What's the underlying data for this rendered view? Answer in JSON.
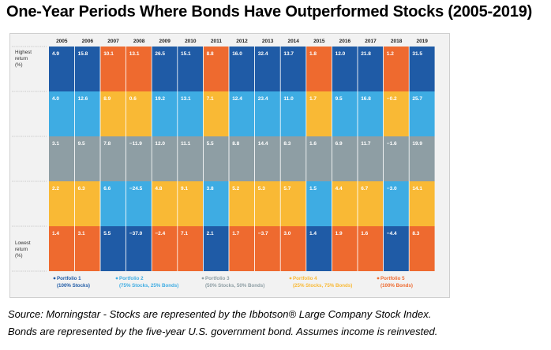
{
  "title": "One-Year Periods Where Bonds Have Outperformed Stocks (2005-2019)",
  "caption_line1": "Source: Morningstar - Stocks are represented by the Ibbotson® Large Company Stock Index.",
  "caption_line2": "Bonds are represented by the five-year U.S. government bond. Assumes income is reinvested.",
  "colors": {
    "portfolio1": "#1f5ba6",
    "portfolio2": "#3eace3",
    "portfolio3": "#8e9ea4",
    "portfolio4": "#f9b935",
    "portfolio5": "#ee6a2f",
    "panel": "#f2f2f2"
  },
  "chart_data": {
    "type": "table",
    "years": [
      "2005",
      "2006",
      "2007",
      "2008",
      "2009",
      "2010",
      "2011",
      "2012",
      "2013",
      "2014",
      "2015",
      "2016",
      "2017",
      "2018",
      "2019"
    ],
    "row_labels": {
      "top": [
        "Highest",
        "return",
        "(%)"
      ],
      "bottom": [
        "Lowest",
        "return",
        "(%)"
      ]
    },
    "legend": [
      {
        "portfolio": 1,
        "name": "Portfolio 1",
        "desc": "(100% Stocks)"
      },
      {
        "portfolio": 2,
        "name": "Portfolio 2",
        "desc": "(75% Stocks, 25% Bonds)"
      },
      {
        "portfolio": 3,
        "name": "Portfolio 3",
        "desc": "(50% Stocks, 50% Bonds)"
      },
      {
        "portfolio": 4,
        "name": "Portfolio 4",
        "desc": "(25% Stocks, 75% Bonds)"
      },
      {
        "portfolio": 5,
        "name": "Portfolio 5",
        "desc": "(100% Bonds)"
      }
    ],
    "columns": [
      {
        "year": "2005",
        "cells": [
          {
            "p": 1,
            "v": "4.9"
          },
          {
            "p": 2,
            "v": "4.0"
          },
          {
            "p": 3,
            "v": "3.1"
          },
          {
            "p": 4,
            "v": "2.2"
          },
          {
            "p": 5,
            "v": "1.4"
          }
        ]
      },
      {
        "year": "2006",
        "cells": [
          {
            "p": 1,
            "v": "15.8"
          },
          {
            "p": 2,
            "v": "12.6"
          },
          {
            "p": 3,
            "v": "9.5"
          },
          {
            "p": 4,
            "v": "6.3"
          },
          {
            "p": 5,
            "v": "3.1"
          }
        ]
      },
      {
        "year": "2007",
        "cells": [
          {
            "p": 5,
            "v": "10.1"
          },
          {
            "p": 4,
            "v": "8.9"
          },
          {
            "p": 3,
            "v": "7.8"
          },
          {
            "p": 2,
            "v": "6.6"
          },
          {
            "p": 1,
            "v": "5.5"
          }
        ]
      },
      {
        "year": "2008",
        "cells": [
          {
            "p": 5,
            "v": "13.1"
          },
          {
            "p": 4,
            "v": "0.6"
          },
          {
            "p": 3,
            "v": "−11.9"
          },
          {
            "p": 2,
            "v": "−24.5"
          },
          {
            "p": 1,
            "v": "−37.0"
          }
        ]
      },
      {
        "year": "2009",
        "cells": [
          {
            "p": 1,
            "v": "26.5"
          },
          {
            "p": 2,
            "v": "19.2"
          },
          {
            "p": 3,
            "v": "12.0"
          },
          {
            "p": 4,
            "v": "4.8"
          },
          {
            "p": 5,
            "v": "−2.4"
          }
        ]
      },
      {
        "year": "2010",
        "cells": [
          {
            "p": 1,
            "v": "15.1"
          },
          {
            "p": 2,
            "v": "13.1"
          },
          {
            "p": 3,
            "v": "11.1"
          },
          {
            "p": 4,
            "v": "9.1"
          },
          {
            "p": 5,
            "v": "7.1"
          }
        ]
      },
      {
        "year": "2011",
        "cells": [
          {
            "p": 5,
            "v": "8.8"
          },
          {
            "p": 4,
            "v": "7.1"
          },
          {
            "p": 3,
            "v": "5.5"
          },
          {
            "p": 2,
            "v": "3.8"
          },
          {
            "p": 1,
            "v": "2.1"
          }
        ]
      },
      {
        "year": "2012",
        "cells": [
          {
            "p": 1,
            "v": "16.0"
          },
          {
            "p": 2,
            "v": "12.4"
          },
          {
            "p": 3,
            "v": "8.8"
          },
          {
            "p": 4,
            "v": "5.2"
          },
          {
            "p": 5,
            "v": "1.7"
          }
        ]
      },
      {
        "year": "2013",
        "cells": [
          {
            "p": 1,
            "v": "32.4"
          },
          {
            "p": 2,
            "v": "23.4"
          },
          {
            "p": 3,
            "v": "14.4"
          },
          {
            "p": 4,
            "v": "5.3"
          },
          {
            "p": 5,
            "v": "−3.7"
          }
        ]
      },
      {
        "year": "2014",
        "cells": [
          {
            "p": 1,
            "v": "13.7"
          },
          {
            "p": 2,
            "v": "11.0"
          },
          {
            "p": 3,
            "v": "8.3"
          },
          {
            "p": 4,
            "v": "5.7"
          },
          {
            "p": 5,
            "v": "3.0"
          }
        ]
      },
      {
        "year": "2015",
        "cells": [
          {
            "p": 5,
            "v": "1.8"
          },
          {
            "p": 4,
            "v": "1.7"
          },
          {
            "p": 3,
            "v": "1.6"
          },
          {
            "p": 2,
            "v": "1.5"
          },
          {
            "p": 1,
            "v": "1.4"
          }
        ]
      },
      {
        "year": "2016",
        "cells": [
          {
            "p": 1,
            "v": "12.0"
          },
          {
            "p": 2,
            "v": "9.5"
          },
          {
            "p": 3,
            "v": "6.9"
          },
          {
            "p": 4,
            "v": "4.4"
          },
          {
            "p": 5,
            "v": "1.9"
          }
        ]
      },
      {
        "year": "2017",
        "cells": [
          {
            "p": 1,
            "v": "21.8"
          },
          {
            "p": 2,
            "v": "16.8"
          },
          {
            "p": 3,
            "v": "11.7"
          },
          {
            "p": 4,
            "v": "6.7"
          },
          {
            "p": 5,
            "v": "1.6"
          }
        ]
      },
      {
        "year": "2018",
        "cells": [
          {
            "p": 5,
            "v": "1.2"
          },
          {
            "p": 4,
            "v": "−0.2"
          },
          {
            "p": 3,
            "v": "−1.6"
          },
          {
            "p": 2,
            "v": "−3.0"
          },
          {
            "p": 1,
            "v": "−4.4"
          }
        ]
      },
      {
        "year": "2019",
        "cells": [
          {
            "p": 1,
            "v": "31.5"
          },
          {
            "p": 2,
            "v": "25.7"
          },
          {
            "p": 3,
            "v": "19.9"
          },
          {
            "p": 4,
            "v": "14.1"
          },
          {
            "p": 5,
            "v": "8.3"
          }
        ]
      }
    ]
  }
}
